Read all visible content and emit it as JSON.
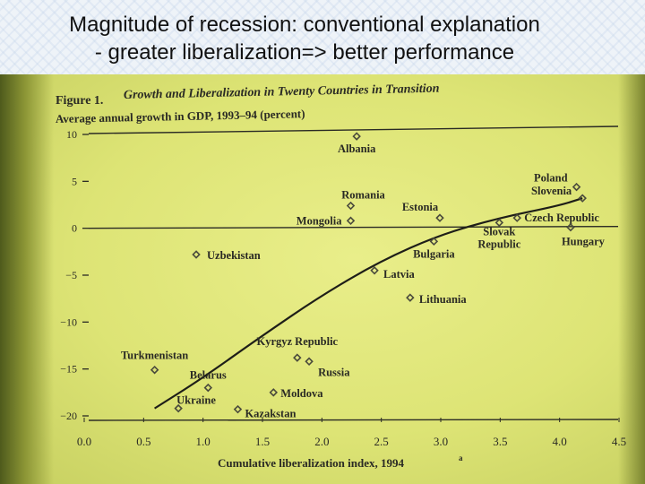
{
  "slide": {
    "title_line1": "Magnitude of recession: conventional explanation",
    "title_line2": "- greater liberalization=> better performance"
  },
  "colors": {
    "ink": "#2a2a24",
    "paper": "#e3e97e",
    "marker": "#4a4a3c"
  },
  "chart_data": {
    "type": "scatter",
    "figure_label": "Figure 1.",
    "title": "Growth and Liberalization in Twenty Countries in Transition",
    "ylabel": "Average annual growth in GDP, 1993–94 (percent)",
    "xlabel": "Cumulative liberalization index, 1994",
    "xlabel_superscript": "a",
    "xlim": [
      0,
      4.5
    ],
    "ylim": [
      -20,
      10
    ],
    "x_ticks": [
      "0.0",
      "0.5",
      "1.0",
      "1.5",
      "2.0",
      "2.5",
      "3.0",
      "3.5",
      "4.0",
      "4.5"
    ],
    "y_ticks": [
      "10",
      "5",
      "0",
      "−5",
      "−10",
      "−15",
      "−20"
    ],
    "zero_line": true,
    "points": [
      {
        "label": "Albania",
        "x": 2.3,
        "y": 9.8
      },
      {
        "label": "Poland",
        "x": 4.15,
        "y": 4.4
      },
      {
        "label": "Slovenia",
        "x": 4.2,
        "y": 3.2
      },
      {
        "label": "Romania",
        "x": 2.25,
        "y": 2.4
      },
      {
        "label": "Estonia",
        "x": 3.0,
        "y": 1.1
      },
      {
        "label": "Mongolia",
        "x": 2.25,
        "y": 0.8
      },
      {
        "label": "Czech Republic",
        "x": 3.65,
        "y": 1.1
      },
      {
        "label": "Slovak Republic",
        "x": 3.5,
        "y": 0.6
      },
      {
        "label": "Hungary",
        "x": 4.1,
        "y": 0.1
      },
      {
        "label": "Bulgaria",
        "x": 2.95,
        "y": -1.4
      },
      {
        "label": "Uzbekistan",
        "x": 0.95,
        "y": -2.8
      },
      {
        "label": "Latvia",
        "x": 2.45,
        "y": -4.5
      },
      {
        "label": "Lithuania",
        "x": 2.75,
        "y": -7.4
      },
      {
        "label": "Kyrgyz Republic",
        "x": 1.8,
        "y": -13.8
      },
      {
        "label": "Russia",
        "x": 1.9,
        "y": -14.2
      },
      {
        "label": "Turkmenistan",
        "x": 0.6,
        "y": -15.1
      },
      {
        "label": "Belarus",
        "x": 1.05,
        "y": -17.0
      },
      {
        "label": "Moldova",
        "x": 1.6,
        "y": -17.5
      },
      {
        "label": "Ukraine",
        "x": 0.8,
        "y": -19.2
      },
      {
        "label": "Kazakstan",
        "x": 1.3,
        "y": -19.3
      }
    ],
    "trend_line": [
      {
        "x": 0.6,
        "y": -19.2
      },
      {
        "x": 1.0,
        "y": -16.0
      },
      {
        "x": 1.5,
        "y": -11.5
      },
      {
        "x": 2.0,
        "y": -7.2
      },
      {
        "x": 2.5,
        "y": -3.5
      },
      {
        "x": 3.0,
        "y": -0.7
      },
      {
        "x": 3.5,
        "y": 1.1
      },
      {
        "x": 4.0,
        "y": 2.4
      },
      {
        "x": 4.2,
        "y": 3.2
      }
    ]
  }
}
